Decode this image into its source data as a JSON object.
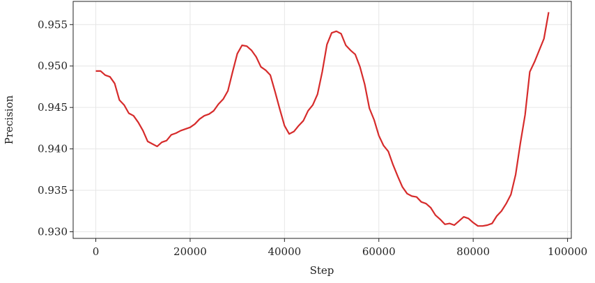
{
  "chart_data": {
    "type": "line",
    "x_label": "Step",
    "y_label": "Precision",
    "x": [
      0,
      1000,
      2000,
      3000,
      4000,
      5000,
      6000,
      7000,
      8000,
      9000,
      10000,
      11000,
      12000,
      13000,
      14000,
      15000,
      16000,
      17000,
      18000,
      19000,
      20000,
      21000,
      22000,
      23000,
      24000,
      25000,
      26000,
      27000,
      28000,
      29000,
      30000,
      31000,
      32000,
      33000,
      34000,
      35000,
      36000,
      37000,
      38000,
      39000,
      40000,
      41000,
      42000,
      43000,
      44000,
      45000,
      46000,
      47000,
      48000,
      49000,
      50000,
      51000,
      52000,
      53000,
      54000,
      55000,
      56000,
      57000,
      58000,
      59000,
      60000,
      61000,
      62000,
      63000,
      64000,
      65000,
      66000,
      67000,
      68000,
      69000,
      70000,
      71000,
      72000,
      73000,
      74000,
      75000,
      76000,
      77000,
      78000,
      79000,
      80000,
      81000,
      82000,
      83000,
      84000,
      85000,
      86000,
      87000,
      88000,
      89000,
      90000,
      91000,
      92000,
      93000,
      94000,
      95000,
      96000
    ],
    "series": [
      {
        "name": "precision",
        "color": "#d62b2b",
        "values": [
          0.9494,
          0.9494,
          0.9489,
          0.9487,
          0.9479,
          0.9459,
          0.9453,
          0.9443,
          0.944,
          0.9432,
          0.9422,
          0.9409,
          0.9406,
          0.9403,
          0.9408,
          0.941,
          0.9417,
          0.9419,
          0.9422,
          0.9424,
          0.9426,
          0.943,
          0.9436,
          0.944,
          0.9442,
          0.9446,
          0.9454,
          0.946,
          0.947,
          0.9493,
          0.9515,
          0.9525,
          0.9524,
          0.9519,
          0.9511,
          0.9499,
          0.9495,
          0.9489,
          0.9469,
          0.9448,
          0.9428,
          0.9418,
          0.9421,
          0.9428,
          0.9434,
          0.9446,
          0.9453,
          0.9466,
          0.9493,
          0.9526,
          0.954,
          0.9542,
          0.9539,
          0.9525,
          0.9519,
          0.9514,
          0.9499,
          0.9478,
          0.9449,
          0.9435,
          0.9416,
          0.9404,
          0.9397,
          0.9381,
          0.9367,
          0.9354,
          0.9346,
          0.9343,
          0.9342,
          0.9336,
          0.9334,
          0.9329,
          0.932,
          0.9315,
          0.9309,
          0.931,
          0.9308,
          0.9313,
          0.9318,
          0.9316,
          0.9311,
          0.9307,
          0.9307,
          0.9308,
          0.931,
          0.9319,
          0.9325,
          0.9334,
          0.9345,
          0.9369,
          0.9407,
          0.9441,
          0.9493,
          0.9505,
          0.9519,
          0.9533,
          0.9565
        ]
      }
    ],
    "xlim": [
      -4800,
      100800
    ],
    "ylim": [
      0.9292,
      0.9578
    ],
    "xticks": [
      0,
      20000,
      40000,
      60000,
      80000,
      100000
    ],
    "yticks": [
      {
        "value": 0.93,
        "label": "0.930"
      },
      0.935,
      {
        "value": 0.94,
        "label": "0.940"
      },
      0.945,
      {
        "value": 0.95,
        "label": "0.950"
      },
      0.955
    ],
    "grid": true
  }
}
